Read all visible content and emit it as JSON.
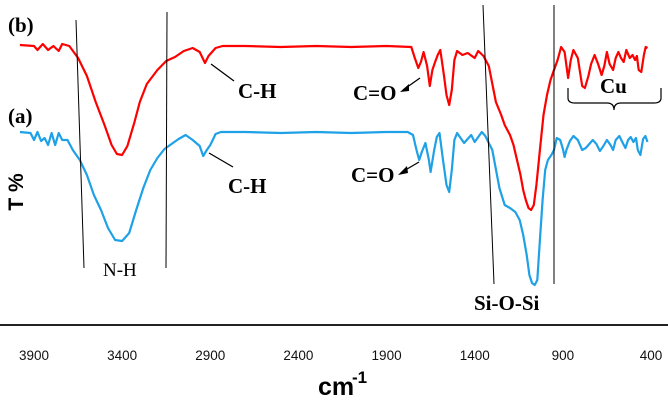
{
  "chart_data": {
    "type": "line",
    "xlabel": "cm",
    "xlabel_superscript": "-1",
    "ylabel": "T %",
    "xlim": [
      3980,
      400
    ],
    "x_ticks": [
      3900,
      3400,
      2900,
      2400,
      1900,
      1400,
      900,
      400
    ],
    "grid": false,
    "series": [
      {
        "name": "(b)",
        "color": "#ff0000",
        "points": [
          [
            3980,
            45
          ],
          [
            3900,
            46
          ],
          [
            3880,
            50
          ],
          [
            3850,
            44
          ],
          [
            3820,
            50
          ],
          [
            3790,
            46
          ],
          [
            3760,
            51
          ],
          [
            3740,
            44
          ],
          [
            3700,
            46
          ],
          [
            3650,
            58
          ],
          [
            3600,
            76
          ],
          [
            3550,
            102
          ],
          [
            3500,
            125
          ],
          [
            3460,
            145
          ],
          [
            3430,
            154
          ],
          [
            3400,
            155
          ],
          [
            3370,
            146
          ],
          [
            3330,
            122
          ],
          [
            3300,
            102
          ],
          [
            3260,
            84
          ],
          [
            3200,
            70
          ],
          [
            3150,
            61
          ],
          [
            3100,
            57
          ],
          [
            3050,
            51
          ],
          [
            3000,
            48
          ],
          [
            2960,
            52
          ],
          [
            2930,
            63
          ],
          [
            2910,
            56
          ],
          [
            2870,
            48
          ],
          [
            2830,
            46
          ],
          [
            2700,
            46
          ],
          [
            2500,
            47
          ],
          [
            2300,
            46
          ],
          [
            2100,
            47
          ],
          [
            1900,
            46
          ],
          [
            1760,
            47
          ],
          [
            1740,
            58
          ],
          [
            1720,
            68
          ],
          [
            1705,
            62
          ],
          [
            1690,
            52
          ],
          [
            1670,
            66
          ],
          [
            1655,
            86
          ],
          [
            1640,
            70
          ],
          [
            1625,
            62
          ],
          [
            1610,
            55
          ],
          [
            1595,
            50
          ],
          [
            1575,
            75
          ],
          [
            1560,
            95
          ],
          [
            1545,
            105
          ],
          [
            1530,
            90
          ],
          [
            1515,
            60
          ],
          [
            1500,
            51
          ],
          [
            1470,
            55
          ],
          [
            1440,
            53
          ],
          [
            1400,
            58
          ],
          [
            1380,
            51
          ],
          [
            1350,
            56
          ],
          [
            1320,
            66
          ],
          [
            1280,
            102
          ],
          [
            1250,
            115
          ],
          [
            1230,
            125
          ],
          [
            1200,
            135
          ],
          [
            1180,
            145
          ],
          [
            1160,
            160
          ],
          [
            1140,
            175
          ],
          [
            1125,
            190
          ],
          [
            1110,
            200
          ],
          [
            1095,
            208
          ],
          [
            1080,
            210
          ],
          [
            1065,
            205
          ],
          [
            1050,
            185
          ],
          [
            1030,
            150
          ],
          [
            1010,
            115
          ],
          [
            990,
            95
          ],
          [
            970,
            80
          ],
          [
            950,
            70
          ],
          [
            930,
            60
          ],
          [
            910,
            47
          ],
          [
            890,
            52
          ],
          [
            870,
            78
          ],
          [
            855,
            60
          ],
          [
            840,
            50
          ],
          [
            815,
            58
          ],
          [
            790,
            86
          ],
          [
            775,
            88
          ],
          [
            755,
            76
          ],
          [
            740,
            64
          ],
          [
            720,
            55
          ],
          [
            700,
            64
          ],
          [
            680,
            75
          ],
          [
            665,
            66
          ],
          [
            650,
            52
          ],
          [
            635,
            64
          ],
          [
            615,
            70
          ],
          [
            600,
            58
          ],
          [
            585,
            52
          ],
          [
            570,
            58
          ],
          [
            555,
            62
          ],
          [
            540,
            50
          ],
          [
            520,
            58
          ],
          [
            505,
            55
          ],
          [
            490,
            60
          ],
          [
            480,
            56
          ],
          [
            470,
            70
          ],
          [
            455,
            72
          ],
          [
            440,
            55
          ],
          [
            430,
            47
          ],
          [
            420,
            48
          ]
        ]
      },
      {
        "name": "(a)",
        "color": "#1ea1e6",
        "points": [
          [
            3980,
            132
          ],
          [
            3920,
            133
          ],
          [
            3900,
            140
          ],
          [
            3880,
            132
          ],
          [
            3860,
            141
          ],
          [
            3840,
            138
          ],
          [
            3820,
            145
          ],
          [
            3800,
            133
          ],
          [
            3780,
            145
          ],
          [
            3760,
            133
          ],
          [
            3740,
            140
          ],
          [
            3710,
            140
          ],
          [
            3680,
            150
          ],
          [
            3640,
            160
          ],
          [
            3600,
            175
          ],
          [
            3560,
            195
          ],
          [
            3520,
            210
          ],
          [
            3480,
            228
          ],
          [
            3440,
            240
          ],
          [
            3400,
            241
          ],
          [
            3360,
            233
          ],
          [
            3320,
            210
          ],
          [
            3280,
            188
          ],
          [
            3240,
            170
          ],
          [
            3200,
            158
          ],
          [
            3160,
            149
          ],
          [
            3120,
            144
          ],
          [
            3080,
            139
          ],
          [
            3040,
            135
          ],
          [
            3000,
            140
          ],
          [
            2960,
            146
          ],
          [
            2940,
            156
          ],
          [
            2920,
            150
          ],
          [
            2900,
            145
          ],
          [
            2870,
            134
          ],
          [
            2840,
            132
          ],
          [
            2700,
            132
          ],
          [
            2500,
            133
          ],
          [
            2300,
            132
          ],
          [
            2100,
            133
          ],
          [
            1900,
            132
          ],
          [
            1780,
            132
          ],
          [
            1750,
            135
          ],
          [
            1730,
            150
          ],
          [
            1715,
            160
          ],
          [
            1700,
            152
          ],
          [
            1680,
            143
          ],
          [
            1660,
            160
          ],
          [
            1650,
            172
          ],
          [
            1630,
            150
          ],
          [
            1615,
            137
          ],
          [
            1600,
            133
          ],
          [
            1580,
            160
          ],
          [
            1560,
            185
          ],
          [
            1545,
            192
          ],
          [
            1530,
            170
          ],
          [
            1515,
            140
          ],
          [
            1500,
            133
          ],
          [
            1460,
            143
          ],
          [
            1420,
            135
          ],
          [
            1400,
            142
          ],
          [
            1360,
            132
          ],
          [
            1340,
            136
          ],
          [
            1300,
            150
          ],
          [
            1260,
            188
          ],
          [
            1230,
            205
          ],
          [
            1200,
            208
          ],
          [
            1170,
            212
          ],
          [
            1145,
            220
          ],
          [
            1125,
            235
          ],
          [
            1105,
            255
          ],
          [
            1090,
            275
          ],
          [
            1075,
            283
          ],
          [
            1060,
            285
          ],
          [
            1045,
            280
          ],
          [
            1030,
            240
          ],
          [
            1015,
            200
          ],
          [
            1000,
            170
          ],
          [
            985,
            160
          ],
          [
            965,
            155
          ],
          [
            950,
            150
          ],
          [
            935,
            138
          ],
          [
            915,
            140
          ],
          [
            900,
            149
          ],
          [
            890,
            157
          ],
          [
            880,
            150
          ],
          [
            860,
            141
          ],
          [
            840,
            136
          ],
          [
            815,
            140
          ],
          [
            790,
            150
          ],
          [
            770,
            148
          ],
          [
            750,
            144
          ],
          [
            730,
            140
          ],
          [
            710,
            144
          ],
          [
            690,
            151
          ],
          [
            670,
            146
          ],
          [
            650,
            140
          ],
          [
            630,
            145
          ],
          [
            615,
            150
          ],
          [
            600,
            140
          ],
          [
            580,
            136
          ],
          [
            560,
            143
          ],
          [
            545,
            148
          ],
          [
            530,
            140
          ],
          [
            515,
            137
          ],
          [
            500,
            142
          ],
          [
            485,
            138
          ],
          [
            475,
            150
          ],
          [
            460,
            155
          ],
          [
            445,
            139
          ],
          [
            432,
            136
          ],
          [
            420,
            142
          ]
        ]
      }
    ],
    "annotations": {
      "series_b_label": "(b)",
      "series_a_label": "(a)",
      "ch_b": "C-H",
      "ch_a": "C-H",
      "co_b": "C=O",
      "co_a": "C=O",
      "cu": "Cu",
      "nh": "N-H",
      "siosi": "Si-O-Si"
    }
  }
}
